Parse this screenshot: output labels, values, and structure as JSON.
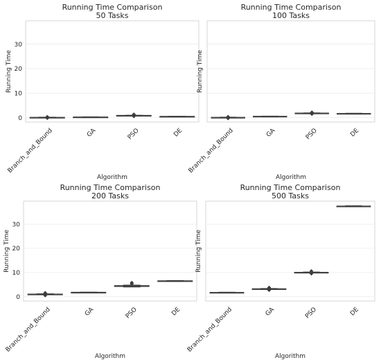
{
  "chart_data": [
    {
      "type": "box",
      "title": [
        "Running Time Comparison",
        "50 Tasks"
      ],
      "xlabel": "Algorithm",
      "ylabel": "Running Time",
      "categories": [
        "Branch_and_Bound",
        "GA",
        "PSO",
        "DE"
      ],
      "ylim": [
        -1.8,
        39.5
      ],
      "yticks": [
        0,
        10,
        20,
        30
      ],
      "show_y_ticklabels": true,
      "grid": true,
      "boxes": [
        {
          "q1": 0.05,
          "median": 0.1,
          "q3": 0.15,
          "low": 0.02,
          "high": 0.2,
          "fliers": [
            -0.2,
            0.35
          ]
        },
        {
          "q1": 0.2,
          "median": 0.25,
          "q3": 0.3,
          "low": 0.15,
          "high": 0.35,
          "fliers": []
        },
        {
          "q1": 0.75,
          "median": 0.85,
          "q3": 0.95,
          "low": 0.7,
          "high": 1.0,
          "fliers": [
            0.55,
            0.65,
            1.2,
            1.35
          ]
        },
        {
          "q1": 0.45,
          "median": 0.5,
          "q3": 0.55,
          "low": 0.4,
          "high": 0.6,
          "fliers": []
        }
      ]
    },
    {
      "type": "box",
      "title": [
        "Running Time Comparison",
        "100 Tasks"
      ],
      "xlabel": "Algorithm",
      "ylabel": "Running Time",
      "categories": [
        "Branch_and_Bound",
        "GA",
        "PSO",
        "DE"
      ],
      "ylim": [
        -1.8,
        39.5
      ],
      "yticks": [
        0,
        10,
        20,
        30
      ],
      "show_y_ticklabels": false,
      "grid": true,
      "boxes": [
        {
          "q1": 0.05,
          "median": 0.1,
          "q3": 0.15,
          "low": 0.02,
          "high": 0.2,
          "fliers": [
            -0.3,
            0.4
          ]
        },
        {
          "q1": 0.5,
          "median": 0.55,
          "q3": 0.6,
          "low": 0.45,
          "high": 0.65,
          "fliers": []
        },
        {
          "q1": 1.7,
          "median": 1.8,
          "q3": 1.9,
          "low": 1.65,
          "high": 1.95,
          "fliers": [
            1.45,
            2.1,
            2.2
          ]
        },
        {
          "q1": 1.55,
          "median": 1.65,
          "q3": 1.75,
          "low": 1.5,
          "high": 1.8,
          "fliers": []
        }
      ]
    },
    {
      "type": "box",
      "title": [
        "Running Time Comparison",
        "200 Tasks"
      ],
      "xlabel": "Algorithm",
      "ylabel": "Running Time",
      "categories": [
        "Branch_and_Bound",
        "GA",
        "PSO",
        "DE"
      ],
      "ylim": [
        -1.8,
        39.5
      ],
      "yticks": [
        0,
        10,
        20,
        30
      ],
      "show_y_ticklabels": true,
      "grid": true,
      "boxes": [
        {
          "q1": 0.9,
          "median": 1.0,
          "q3": 1.1,
          "low": 0.8,
          "high": 1.2,
          "fliers": [
            0.5,
            0.7,
            1.4,
            1.6
          ]
        },
        {
          "q1": 1.75,
          "median": 1.8,
          "q3": 1.85,
          "low": 1.7,
          "high": 1.9,
          "fliers": []
        },
        {
          "q1": 4.2,
          "median": 4.4,
          "q3": 4.6,
          "low": 4.0,
          "high": 4.8,
          "fliers": [
            5.3,
            5.6,
            5.8
          ]
        },
        {
          "q1": 6.4,
          "median": 6.5,
          "q3": 6.6,
          "low": 6.3,
          "high": 6.7,
          "fliers": []
        }
      ]
    },
    {
      "type": "box",
      "title": [
        "Running Time Comparison",
        "500 Tasks"
      ],
      "xlabel": "Algorithm",
      "ylabel": "Running Time",
      "categories": [
        "Branch_and_Bound",
        "GA",
        "PSO",
        "DE"
      ],
      "ylim": [
        -1.8,
        39.5
      ],
      "yticks": [
        0,
        10,
        20,
        30
      ],
      "show_y_ticklabels": false,
      "grid": true,
      "boxes": [
        {
          "q1": 1.6,
          "median": 1.7,
          "q3": 1.8,
          "low": 1.55,
          "high": 1.85,
          "fliers": []
        },
        {
          "q1": 3.1,
          "median": 3.2,
          "q3": 3.3,
          "low": 3.0,
          "high": 3.4,
          "fliers": [
            2.7,
            2.9,
            3.6,
            3.8
          ]
        },
        {
          "q1": 9.9,
          "median": 10.0,
          "q3": 10.1,
          "low": 9.8,
          "high": 10.2,
          "fliers": [
            9.5,
            10.6
          ]
        },
        {
          "q1": 37.3,
          "median": 37.4,
          "q3": 37.5,
          "low": 37.2,
          "high": 37.6,
          "fliers": []
        }
      ]
    }
  ]
}
